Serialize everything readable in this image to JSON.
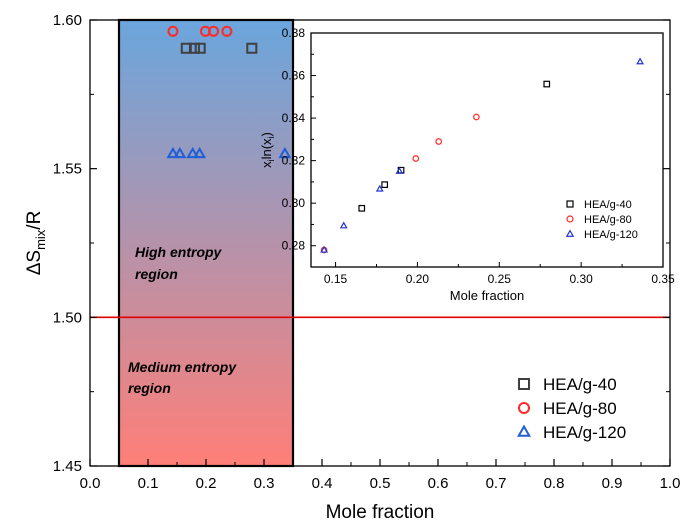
{
  "chart_data": [
    {
      "type": "scatter",
      "xlabel": "Mole fraction",
      "ylabel_parts": [
        "ΔS",
        "mix",
        "/R"
      ],
      "xlim": [
        0.0,
        1.0
      ],
      "ylim": [
        1.45,
        1.6
      ],
      "x_ticks": [
        "0.0",
        "0.1",
        "0.2",
        "0.3",
        "0.4",
        "0.5",
        "0.6",
        "0.7",
        "0.8",
        "0.9",
        "1.0"
      ],
      "y_ticks": [
        "1.45",
        "1.50",
        "1.55",
        "1.60"
      ],
      "grid": false,
      "legend_position": "bottom-right",
      "region": {
        "x_range": [
          0.05,
          0.35
        ],
        "gradient_colors": [
          "#6aa6dd",
          "#ff7f78"
        ],
        "high_label": [
          "High entropy",
          "region"
        ],
        "medium_label": [
          "Medium entropy",
          "region"
        ]
      },
      "reference_line": {
        "y": 1.5,
        "color": "#e00000"
      },
      "series": [
        {
          "name": "HEA/g-40",
          "marker": "square",
          "color": "#404040",
          "y": 1.5905,
          "x": [
            0.166,
            0.18,
            0.19,
            0.279
          ]
        },
        {
          "name": "HEA/g-80",
          "marker": "circle",
          "color": "#ff2a2a",
          "y": 1.5962,
          "x": [
            0.143,
            0.199,
            0.213,
            0.236
          ]
        },
        {
          "name": "HEA/g-120",
          "marker": "triangle",
          "color": "#1f5fd6",
          "y": 1.555,
          "x": [
            0.143,
            0.155,
            0.177,
            0.189,
            0.336
          ]
        }
      ]
    },
    {
      "type": "scatter",
      "xlabel": "Mole fraction",
      "ylabel_parts": [
        "x",
        "i",
        "ln(x",
        "i",
        ")"
      ],
      "xlim": [
        0.135,
        0.35
      ],
      "ylim": [
        0.27,
        0.38
      ],
      "x_ticks": [
        "0.15",
        "0.20",
        "0.25",
        "0.30",
        "0.35"
      ],
      "y_ticks": [
        "0.28",
        "0.30",
        "0.32",
        "0.34",
        "0.36",
        "0.38"
      ],
      "grid": false,
      "legend_position": "bottom-right",
      "series": [
        {
          "name": "HEA/g-40",
          "marker": "square",
          "color": "#000000",
          "points": [
            [
              0.166,
              0.2976
            ],
            [
              0.18,
              0.3087
            ],
            [
              0.19,
              0.3155
            ],
            [
              0.279,
              0.356
            ]
          ]
        },
        {
          "name": "HEA/g-80",
          "marker": "circle",
          "color": "#ff2a2a",
          "points": [
            [
              0.143,
              0.278
            ],
            [
              0.199,
              0.321
            ],
            [
              0.213,
              0.329
            ],
            [
              0.236,
              0.3405
            ]
          ]
        },
        {
          "name": "HEA/g-120",
          "marker": "triangle",
          "color": "#1f33d6",
          "points": [
            [
              0.143,
              0.278
            ],
            [
              0.155,
              0.2894
            ],
            [
              0.177,
              0.3067
            ],
            [
              0.189,
              0.315
            ],
            [
              0.336,
              0.3665
            ]
          ]
        }
      ]
    }
  ]
}
